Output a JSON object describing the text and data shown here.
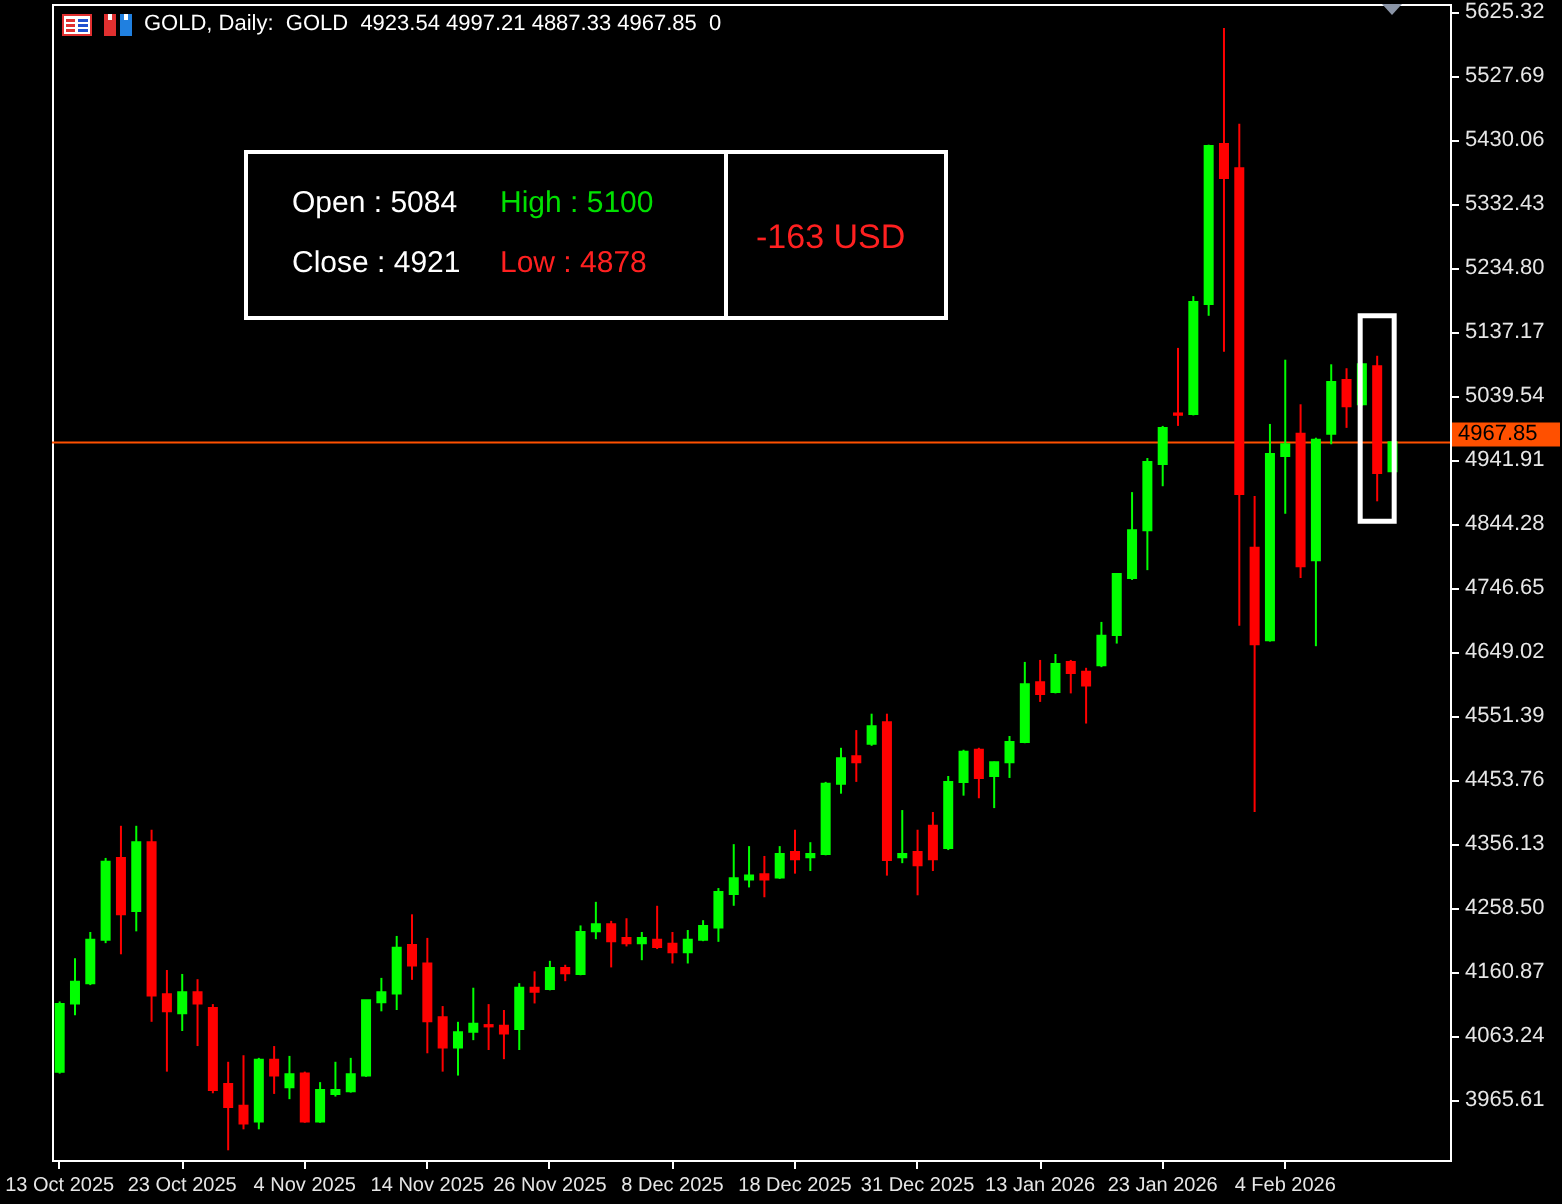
{
  "chart_data": {
    "type": "candlestick",
    "title": "GOLD, Daily:  GOLD  4923.54 4997.21 4887.33 4967.85  0",
    "categories": [
      "13 Oct 2025",
      null,
      null,
      null,
      null,
      null,
      null,
      null,
      "23 Oct 2025",
      null,
      null,
      null,
      null,
      null,
      null,
      null,
      "4 Nov 2025",
      null,
      null,
      null,
      null,
      null,
      null,
      null,
      "14 Nov 2025",
      null,
      null,
      null,
      null,
      null,
      null,
      null,
      "26 Nov 2025",
      null,
      null,
      null,
      null,
      null,
      null,
      null,
      "8 Dec 2025",
      null,
      null,
      null,
      null,
      null,
      null,
      null,
      "18 Dec 2025",
      null,
      null,
      null,
      null,
      null,
      null,
      null,
      "31 Dec 2025",
      null,
      null,
      null,
      null,
      null,
      null,
      null,
      "13 Jan 2026",
      null,
      null,
      null,
      null,
      null,
      null,
      null,
      "23 Jan 2026",
      null,
      null,
      null,
      null,
      null,
      null,
      null,
      "4 Feb 2026",
      null,
      null,
      null,
      null,
      null,
      null,
      null
    ],
    "ohlc": [
      [
        4008,
        4115,
        4005,
        4111
      ],
      [
        4112,
        4181,
        4094,
        4145
      ],
      [
        4143,
        4221,
        4140,
        4209
      ],
      [
        4209,
        4334,
        4204,
        4328
      ],
      [
        4334,
        4383,
        4187,
        4248
      ],
      [
        4253,
        4383,
        4222,
        4358
      ],
      [
        4358,
        4377,
        4084,
        4124
      ],
      [
        4126,
        4163,
        4008,
        4100
      ],
      [
        4097,
        4157,
        4070,
        4129
      ],
      [
        4129,
        4149,
        4047,
        4112
      ],
      [
        4105,
        4111,
        3975,
        3980
      ],
      [
        3989,
        4023,
        3888,
        3954
      ],
      [
        3956,
        4033,
        3920,
        3929
      ],
      [
        3932,
        4029,
        3920,
        4026
      ],
      [
        4026,
        4047,
        3974,
        4002
      ],
      [
        3984,
        4032,
        3966,
        4004
      ],
      [
        4005,
        4008,
        3930,
        3932
      ],
      [
        3932,
        3992,
        3930,
        3980
      ],
      [
        3974,
        4023,
        3970,
        3980
      ],
      [
        3978,
        4029,
        3976,
        4004
      ],
      [
        4002,
        4117,
        4000,
        4117
      ],
      [
        4114,
        4151,
        4100,
        4129
      ],
      [
        4127,
        4215,
        4102,
        4197
      ],
      [
        4201,
        4248,
        4148,
        4170
      ],
      [
        4173,
        4212,
        4036,
        4085
      ],
      [
        4091,
        4108,
        4008,
        4045
      ],
      [
        4045,
        4084,
        4002,
        4068
      ],
      [
        4069,
        4136,
        4056,
        4081
      ],
      [
        4079,
        4111,
        4041,
        4077
      ],
      [
        4078,
        4102,
        4027,
        4066
      ],
      [
        4073,
        4143,
        4041,
        4136
      ],
      [
        4136,
        4161,
        4112,
        4130
      ],
      [
        4134,
        4177,
        4132,
        4166
      ],
      [
        4166,
        4171,
        4146,
        4158
      ],
      [
        4157,
        4231,
        4155,
        4221
      ],
      [
        4222,
        4267,
        4210,
        4233
      ],
      [
        4233,
        4238,
        4167,
        4207
      ],
      [
        4212,
        4242,
        4199,
        4204
      ],
      [
        4204,
        4221,
        4178,
        4212
      ],
      [
        4209,
        4261,
        4195,
        4198
      ],
      [
        4203,
        4221,
        4173,
        4190
      ],
      [
        4190,
        4224,
        4173,
        4209
      ],
      [
        4209,
        4239,
        4207,
        4230
      ],
      [
        4228,
        4288,
        4206,
        4282
      ],
      [
        4279,
        4355,
        4261,
        4303
      ],
      [
        4301,
        4352,
        4289,
        4307
      ],
      [
        4309,
        4337,
        4274,
        4301
      ],
      [
        4304,
        4352,
        4302,
        4340
      ],
      [
        4343,
        4377,
        4310,
        4332
      ],
      [
        4335,
        4358,
        4314,
        4340
      ],
      [
        4340,
        4450,
        4338,
        4447
      ],
      [
        4447,
        4502,
        4432,
        4486
      ],
      [
        4489,
        4529,
        4450,
        4480
      ],
      [
        4508,
        4554,
        4505,
        4535
      ],
      [
        4541,
        4554,
        4307,
        4331
      ],
      [
        4335,
        4407,
        4326,
        4340
      ],
      [
        4343,
        4377,
        4277,
        4323
      ],
      [
        4383,
        4404,
        4314,
        4332
      ],
      [
        4349,
        4459,
        4346,
        4450
      ],
      [
        4450,
        4499,
        4429,
        4496
      ],
      [
        4499,
        4502,
        4425,
        4456
      ],
      [
        4459,
        4481,
        4410,
        4480
      ],
      [
        4480,
        4520,
        4456,
        4511
      ],
      [
        4511,
        4633,
        4509,
        4599
      ],
      [
        4602,
        4636,
        4572,
        4584
      ],
      [
        4587,
        4645,
        4585,
        4630
      ],
      [
        4633,
        4636,
        4585,
        4616
      ],
      [
        4618,
        4624,
        4539,
        4597
      ],
      [
        4628,
        4694,
        4625,
        4673
      ],
      [
        4674,
        4767,
        4661,
        4767
      ],
      [
        4761,
        4892,
        4758,
        4834
      ],
      [
        4834,
        4944,
        4773,
        4938
      ],
      [
        4935,
        4993,
        4901,
        4990
      ],
      [
        5012,
        5112,
        4993,
        5010
      ],
      [
        5011,
        5191,
        5009,
        5182
      ],
      [
        5179,
        5422,
        5161,
        5420
      ],
      [
        5423,
        5600,
        5106,
        5371
      ],
      [
        5386,
        5454,
        4688,
        4889
      ],
      [
        4807,
        4886,
        4404,
        4660
      ],
      [
        4666,
        4996,
        4664,
        4950
      ],
      [
        4947,
        5094,
        4859,
        4965
      ],
      [
        4981,
        5026,
        4761,
        4779
      ],
      [
        4788,
        4975,
        4657,
        4972
      ],
      [
        4981,
        5087,
        4965,
        5060
      ],
      [
        5063,
        5081,
        4990,
        5023
      ],
      [
        5026,
        5088,
        5024,
        5087
      ],
      [
        5084,
        5100,
        4878,
        4921
      ],
      [
        4924,
        4968,
        4924,
        4968
      ]
    ],
    "colors": [
      "#00ff00",
      "#00ff00",
      "#00ff00",
      "#00ff00",
      "#ff0000",
      "#00ff00",
      "#ff0000",
      "#ff0000",
      "#00ff00",
      "#ff0000",
      "#ff0000",
      "#ff0000",
      "#ff0000",
      "#00ff00",
      "#ff0000",
      "#00ff00",
      "#ff0000",
      "#00ff00",
      "#00ff00",
      "#00ff00",
      "#00ff00",
      "#00ff00",
      "#00ff00",
      "#ff0000",
      "#ff0000",
      "#ff0000",
      "#00ff00",
      "#00ff00",
      "#ff0000",
      "#ff0000",
      "#00ff00",
      "#ff0000",
      "#00ff00",
      "#ff0000",
      "#00ff00",
      "#00ff00",
      "#ff0000",
      "#ff0000",
      "#00ff00",
      "#ff0000",
      "#ff0000",
      "#00ff00",
      "#00ff00",
      "#00ff00",
      "#00ff00",
      "#00ff00",
      "#ff0000",
      "#00ff00",
      "#ff0000",
      "#00ff00",
      "#00ff00",
      "#00ff00",
      "#ff0000",
      "#00ff00",
      "#ff0000",
      "#00ff00",
      "#ff0000",
      "#ff0000",
      "#00ff00",
      "#00ff00",
      "#ff0000",
      "#00ff00",
      "#00ff00",
      "#00ff00",
      "#ff0000",
      "#00ff00",
      "#ff0000",
      "#ff0000",
      "#00ff00",
      "#00ff00",
      "#00ff00",
      "#00ff00",
      "#00ff00",
      "#ff0000",
      "#00ff00",
      "#00ff00",
      "#ff0000",
      "#ff0000",
      "#ff0000",
      "#00ff00",
      "#00ff00",
      "#ff0000",
      "#00ff00",
      "#00ff00",
      "#ff0000",
      "#00ff00",
      "#ff0000",
      "#00ff00"
    ],
    "ylim": [
      3873.2,
      5636.6
    ],
    "yticks": [
      5625.32,
      5527.69,
      5430.06,
      5332.43,
      {
        "value": 5234.8,
        "label": "5234.80"
      },
      5137.17,
      5039.54,
      4941.91,
      4844.28,
      4746.65,
      4649.02,
      4551.39,
      4453.76,
      4356.13,
      {
        "value": 4258.5,
        "label": "4258.50"
      },
      4160.87,
      4063.24,
      3965.61
    ],
    "ref_lines": [
      {
        "axis": "y",
        "value": 4967.85,
        "label": "4967.85",
        "color": "#ff5000"
      }
    ],
    "annotations": [
      "Open : 5084",
      "High : 5100",
      "Close : 4921",
      "Low : 4878",
      "-163 USD"
    ]
  }
}
